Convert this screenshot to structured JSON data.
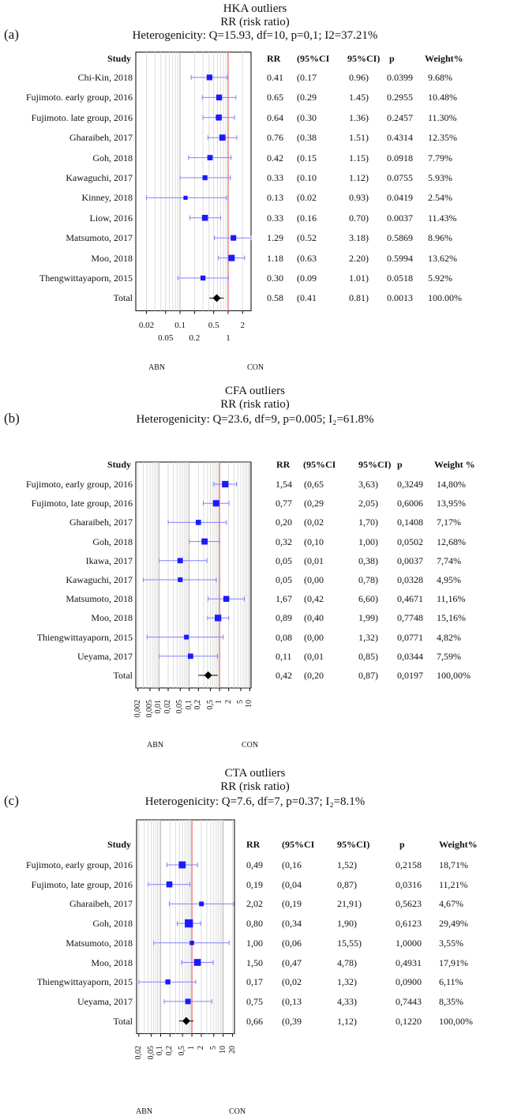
{
  "panels": [
    {
      "id": "a",
      "label": "(a)",
      "title_lines": [
        "HKA outliers",
        "RR (risk ratio)",
        "Heterogenicity: Q=15.93, df=10, p=0,1; I2=37.21%"
      ],
      "headers": {
        "study": "Study",
        "rr": "RR",
        "lo": "(95%CI",
        "hi": "95%CI)",
        "p": "p",
        "w": "Weight%"
      },
      "rows": [
        {
          "study": "Chi-Kin, 2018",
          "rr": "0.41",
          "lo": "(0.17",
          "hi": "0.96)",
          "p": "0.0399",
          "w": "9.68%"
        },
        {
          "study": "Fujimoto. early group, 2016",
          "rr": "0.65",
          "lo": "(0.29",
          "hi": "1.45)",
          "p": "0.2955",
          "w": "10.48%"
        },
        {
          "study": "Fujimoto. late group, 2016",
          "rr": "0.64",
          "lo": "(0.30",
          "hi": "1.36)",
          "p": "0.2457",
          "w": "11.30%"
        },
        {
          "study": "Gharaibeh, 2017",
          "rr": "0.76",
          "lo": "(0.38",
          "hi": "1.51)",
          "p": "0.4314",
          "w": "12.35%"
        },
        {
          "study": "Goh, 2018",
          "rr": "0.42",
          "lo": "(0.15",
          "hi": "1.15)",
          "p": "0.0918",
          "w": "7.79%"
        },
        {
          "study": "Kawaguchi, 2017",
          "rr": "0.33",
          "lo": "(0.10",
          "hi": "1.12)",
          "p": "0.0755",
          "w": "5.93%"
        },
        {
          "study": "Kinney, 2018",
          "rr": "0.13",
          "lo": "(0.02",
          "hi": "0.93)",
          "p": "0.0419",
          "w": "2.54%"
        },
        {
          "study": "Liow, 2016",
          "rr": "0.33",
          "lo": "(0.16",
          "hi": "0.70)",
          "p": "0.0037",
          "w": "11.43%"
        },
        {
          "study": "Matsumoto, 2017",
          "rr": "1.29",
          "lo": "(0.52",
          "hi": "3.18)",
          "p": "0.5869",
          "w": "8.96%"
        },
        {
          "study": "Moo, 2018",
          "rr": "1.18",
          "lo": "(0.63",
          "hi": "2.20)",
          "p": "0.5994",
          "w": "13.62%"
        },
        {
          "study": "Thengwittayaporn, 2015",
          "rr": "0.30",
          "lo": "(0.09",
          "hi": "1.01)",
          "p": "0.0518",
          "w": "5.92%"
        },
        {
          "study": "Total",
          "rr": "0.58",
          "lo": "(0.41",
          "hi": "0.81)",
          "p": "0.0013",
          "w": "100.00%"
        }
      ],
      "ticks_top": [
        "0.02",
        "0.1",
        "0.5",
        "2"
      ],
      "ticks_bottom": [
        "0.05",
        "0.2",
        "1"
      ],
      "left_label": "ABN",
      "right_label": "CON"
    },
    {
      "id": "b",
      "label": "(b)",
      "title_lines": [
        "CFA outliers",
        "RR (risk ratio)",
        "Heterogenicity: Q=23.6, df=9, p=0.005; I₂=61.8%"
      ],
      "headers": {
        "study": "Study",
        "rr": "RR",
        "lo": "(95%CI",
        "hi": "95%CI)",
        "p": "p",
        "w": "Weight %"
      },
      "rows": [
        {
          "study": "Fujimoto, early group, 2016",
          "rr": "1,54",
          "lo": "(0,65",
          "hi": "3,63)",
          "p": "0,3249",
          "w": "14,80%"
        },
        {
          "study": "Fujimoto, late group, 2016",
          "rr": "0,77",
          "lo": "(0,29",
          "hi": "2,05)",
          "p": "0,6006",
          "w": "13,95%"
        },
        {
          "study": "Gharaibeh, 2017",
          "rr": "0,20",
          "lo": "(0,02",
          "hi": "1,70)",
          "p": "0,1408",
          "w": "7,17%"
        },
        {
          "study": "Goh, 2018",
          "rr": "0,32",
          "lo": "(0,10",
          "hi": "1,00)",
          "p": "0,0502",
          "w": "12,68%"
        },
        {
          "study": "Ikawa, 2017",
          "rr": "0,05",
          "lo": "(0,01",
          "hi": "0,38)",
          "p": "0,0037",
          "w": "7,74%"
        },
        {
          "study": "Kawaguchi, 2017",
          "rr": "0,05",
          "lo": "(0,00",
          "hi": "0,78)",
          "p": "0,0328",
          "w": "4,95%"
        },
        {
          "study": "Matsumoto, 2018",
          "rr": "1,67",
          "lo": "(0,42",
          "hi": "6,60)",
          "p": "0,4671",
          "w": "11,16%"
        },
        {
          "study": "Moo, 2018",
          "rr": "0,89",
          "lo": "(0,40",
          "hi": "1,99)",
          "p": "0,7748",
          "w": "15,16%"
        },
        {
          "study": "Thiengwittayaporn, 2015",
          "rr": "0,08",
          "lo": "(0,00",
          "hi": "1,32)",
          "p": "0,0771",
          "w": "4,82%"
        },
        {
          "study": "Ueyama, 2017",
          "rr": "0,11",
          "lo": "(0,01",
          "hi": "0,85)",
          "p": "0,0344",
          "w": "7,59%"
        },
        {
          "study": "Total",
          "rr": "0,42",
          "lo": "(0,20",
          "hi": "0,87)",
          "p": "0,0197",
          "w": "100,00%"
        }
      ],
      "ticks": [
        "0,002",
        "0,005",
        "0,01",
        "0,02",
        "0,05",
        "0,1",
        "0,2",
        "0,5",
        "1",
        "2",
        "5",
        "10"
      ],
      "left_label": "ABN",
      "right_label": "CON"
    },
    {
      "id": "c",
      "label": "(c)",
      "title_lines": [
        "CTA outliers",
        "RR (risk ratio)",
        "Heterogenicity: Q=7.6, df=7, p=0.37; I₂=8.1%"
      ],
      "headers": {
        "study": "Study",
        "rr": "RR",
        "lo": "(95%CI",
        "hi": "95%CI)",
        "p": "p",
        "w": "Weight%"
      },
      "rows": [
        {
          "study": "Fujimoto, early group, 2016",
          "rr": "0,49",
          "lo": "(0,16",
          "hi": "1,52)",
          "p": "0,2158",
          "w": "18,71%"
        },
        {
          "study": "Fujimoto, late group, 2016",
          "rr": "0,19",
          "lo": "(0,04",
          "hi": "0,87)",
          "p": "0,0316",
          "w": "11,21%"
        },
        {
          "study": "Gharaibeh, 2017",
          "rr": "2,02",
          "lo": "(0,19",
          "hi": "21,91)",
          "p": "0,5623",
          "w": "4,67%"
        },
        {
          "study": "Goh, 2018",
          "rr": "0,80",
          "lo": "(0,34",
          "hi": "1,90)",
          "p": "0,6123",
          "w": "29,49%"
        },
        {
          "study": "Matsumoto, 2018",
          "rr": "1,00",
          "lo": "(0,06",
          "hi": "15,55)",
          "p": "1,0000",
          "w": "3,55%"
        },
        {
          "study": "Moo, 2018",
          "rr": "1,50",
          "lo": "(0,47",
          "hi": "4,78)",
          "p": "0,4931",
          "w": "17,91%"
        },
        {
          "study": "Thiengwittayaporn, 2015",
          "rr": "0,17",
          "lo": "(0,02",
          "hi": "1,32)",
          "p": "0,0900",
          "w": "6,11%"
        },
        {
          "study": "Ueyama, 2017",
          "rr": "0,75",
          "lo": "(0,13",
          "hi": "4,33)",
          "p": "0,7443",
          "w": "8,35%"
        },
        {
          "study": "Total",
          "rr": "0,66",
          "lo": "(0,39",
          "hi": "1,12)",
          "p": "0,1220",
          "w": "100,00%"
        }
      ],
      "ticks": [
        "0,02",
        "0,05",
        "0,1",
        "0,2",
        "0,5",
        "1",
        "2",
        "5",
        "10",
        "20"
      ],
      "left_label": "ABN",
      "right_label": "CON"
    }
  ],
  "chart_data": [
    {
      "type": "scatter",
      "panel": "a",
      "title": "HKA outliers",
      "subtitle": "RR (risk ratio)",
      "note": "Heterogenicity: Q=15.93, df=10, p=0,1; I2=37.21%",
      "xscale": "log",
      "xlim": [
        0.012,
        3.0
      ],
      "categories": [
        "Chi-Kin, 2018",
        "Fujimoto. early group, 2016",
        "Fujimoto. late group, 2016",
        "Gharaibeh, 2017",
        "Goh, 2018",
        "Kawaguchi, 2017",
        "Kinney, 2018",
        "Liow, 2016",
        "Matsumoto, 2017",
        "Moo, 2018",
        "Thengwittayaporn, 2015",
        "Total"
      ],
      "rr": [
        0.41,
        0.65,
        0.64,
        0.76,
        0.42,
        0.33,
        0.13,
        0.33,
        1.29,
        1.18,
        0.3,
        0.58
      ],
      "ci_low": [
        0.17,
        0.29,
        0.3,
        0.38,
        0.15,
        0.1,
        0.02,
        0.16,
        0.52,
        0.63,
        0.09,
        0.41
      ],
      "ci_high": [
        0.96,
        1.45,
        1.36,
        1.51,
        1.15,
        1.12,
        0.93,
        0.7,
        3.18,
        2.2,
        1.01,
        0.81
      ],
      "weight_pct": [
        9.68,
        10.48,
        11.3,
        12.35,
        7.79,
        5.93,
        2.54,
        11.43,
        8.96,
        13.62,
        5.92,
        100.0
      ],
      "reference_line": 1,
      "colors": {
        "study": "#1a1aff",
        "total": "#000000",
        "reference": "#f08080",
        "ci": "#8080ff"
      }
    },
    {
      "type": "scatter",
      "panel": "b",
      "title": "CFA outliers",
      "subtitle": "RR (risk ratio)",
      "note": "Heterogenicity: Q=23.6, df=9, p=0.005; I₂=61.8%",
      "xscale": "log",
      "xlim": [
        0.002,
        10
      ],
      "categories": [
        "Fujimoto, early group, 2016",
        "Fujimoto, late group, 2016",
        "Gharaibeh, 2017",
        "Goh, 2018",
        "Ikawa, 2017",
        "Kawaguchi, 2017",
        "Matsumoto, 2018",
        "Moo, 2018",
        "Thiengwittayaporn, 2015",
        "Ueyama, 2017",
        "Total"
      ],
      "rr": [
        1.54,
        0.77,
        0.2,
        0.32,
        0.05,
        0.05,
        1.67,
        0.89,
        0.08,
        0.11,
        0.42
      ],
      "ci_low": [
        0.65,
        0.29,
        0.02,
        0.1,
        0.01,
        0.003,
        0.42,
        0.4,
        0.004,
        0.01,
        0.2
      ],
      "ci_high": [
        3.63,
        2.05,
        1.7,
        1.0,
        0.38,
        0.78,
        6.6,
        1.99,
        1.32,
        0.85,
        0.87
      ],
      "weight_pct": [
        14.8,
        13.95,
        7.17,
        12.68,
        7.74,
        4.95,
        11.16,
        15.16,
        4.82,
        7.59,
        100.0
      ],
      "reference_line": 1,
      "colors": {
        "study": "#1a1aff",
        "total": "#000000",
        "reference": "#f08080",
        "ci": "#8080ff"
      }
    },
    {
      "type": "scatter",
      "panel": "c",
      "title": "CTA outliers",
      "subtitle": "RR (risk ratio)",
      "note": "Heterogenicity: Q=7.6, df=7, p=0.37; I₂=8.1%",
      "xscale": "log",
      "xlim": [
        0.02,
        20
      ],
      "categories": [
        "Fujimoto, early group, 2016",
        "Fujimoto, late group, 2016",
        "Gharaibeh, 2017",
        "Goh, 2018",
        "Matsumoto, 2018",
        "Moo, 2018",
        "Thiengwittayaporn, 2015",
        "Ueyama, 2017",
        "Total"
      ],
      "rr": [
        0.49,
        0.19,
        2.02,
        0.8,
        1.0,
        1.5,
        0.17,
        0.75,
        0.66
      ],
      "ci_low": [
        0.16,
        0.04,
        0.19,
        0.34,
        0.06,
        0.47,
        0.02,
        0.13,
        0.39
      ],
      "ci_high": [
        1.52,
        0.87,
        21.91,
        1.9,
        15.55,
        4.78,
        1.32,
        4.33,
        1.12
      ],
      "weight_pct": [
        18.71,
        11.21,
        4.67,
        29.49,
        3.55,
        17.91,
        6.11,
        8.35,
        100.0
      ],
      "reference_line": 1,
      "colors": {
        "study": "#1a1aff",
        "total": "#000000",
        "reference": "#f08080",
        "ci": "#8080ff"
      }
    }
  ]
}
